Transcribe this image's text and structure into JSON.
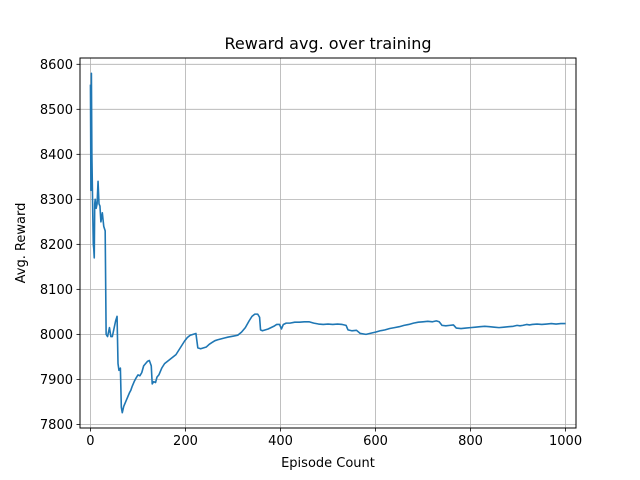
{
  "chart_data": {
    "type": "line",
    "title": "Reward avg. over training",
    "xlabel": "Episode Count",
    "ylabel": "Avg. Reward",
    "xlim": [
      -22,
      1022
    ],
    "ylim": [
      7792,
      8614
    ],
    "xticks": [
      0,
      200,
      400,
      600,
      800,
      1000
    ],
    "yticks": [
      7800,
      7900,
      8000,
      8100,
      8200,
      8300,
      8400,
      8500,
      8600
    ],
    "grid": true,
    "line_color": "#1f77b4",
    "series": [
      {
        "points": [
          [
            0,
            8555
          ],
          [
            1,
            8320
          ],
          [
            2,
            8580
          ],
          [
            3,
            8400
          ],
          [
            4,
            8330
          ],
          [
            5,
            8260
          ],
          [
            6,
            8200
          ],
          [
            7,
            8190
          ],
          [
            8,
            8170
          ],
          [
            9,
            8290
          ],
          [
            10,
            8300
          ],
          [
            12,
            8280
          ],
          [
            14,
            8290
          ],
          [
            16,
            8340
          ],
          [
            18,
            8290
          ],
          [
            20,
            8285
          ],
          [
            22,
            8250
          ],
          [
            25,
            8270
          ],
          [
            28,
            8240
          ],
          [
            31,
            8230
          ],
          [
            33,
            8000
          ],
          [
            36,
            7995
          ],
          [
            40,
            8015
          ],
          [
            43,
            7995
          ],
          [
            46,
            7995
          ],
          [
            49,
            8010
          ],
          [
            53,
            8030
          ],
          [
            56,
            8040
          ],
          [
            58,
            7935
          ],
          [
            60,
            7920
          ],
          [
            63,
            7925
          ],
          [
            65,
            7838
          ],
          [
            67,
            7826
          ],
          [
            70,
            7840
          ],
          [
            74,
            7850
          ],
          [
            78,
            7860
          ],
          [
            82,
            7870
          ],
          [
            85,
            7876
          ],
          [
            88,
            7885
          ],
          [
            92,
            7895
          ],
          [
            96,
            7903
          ],
          [
            100,
            7910
          ],
          [
            104,
            7908
          ],
          [
            108,
            7915
          ],
          [
            112,
            7930
          ],
          [
            116,
            7935
          ],
          [
            120,
            7940
          ],
          [
            124,
            7942
          ],
          [
            128,
            7930
          ],
          [
            130,
            7890
          ],
          [
            133,
            7895
          ],
          [
            137,
            7893
          ],
          [
            140,
            7905
          ],
          [
            144,
            7910
          ],
          [
            150,
            7925
          ],
          [
            156,
            7935
          ],
          [
            162,
            7940
          ],
          [
            168,
            7945
          ],
          [
            174,
            7950
          ],
          [
            180,
            7955
          ],
          [
            186,
            7965
          ],
          [
            192,
            7975
          ],
          [
            198,
            7985
          ],
          [
            204,
            7993
          ],
          [
            210,
            7998
          ],
          [
            216,
            8000
          ],
          [
            222,
            8002
          ],
          [
            226,
            7970
          ],
          [
            232,
            7968
          ],
          [
            238,
            7970
          ],
          [
            244,
            7972
          ],
          [
            250,
            7978
          ],
          [
            256,
            7982
          ],
          [
            262,
            7986
          ],
          [
            268,
            7988
          ],
          [
            275,
            7990
          ],
          [
            282,
            7992
          ],
          [
            290,
            7994
          ],
          [
            300,
            7996
          ],
          [
            310,
            7998
          ],
          [
            318,
            8005
          ],
          [
            326,
            8015
          ],
          [
            334,
            8030
          ],
          [
            340,
            8040
          ],
          [
            346,
            8045
          ],
          [
            352,
            8045
          ],
          [
            356,
            8038
          ],
          [
            358,
            8010
          ],
          [
            362,
            8008
          ],
          [
            368,
            8010
          ],
          [
            374,
            8012
          ],
          [
            380,
            8015
          ],
          [
            386,
            8018
          ],
          [
            392,
            8022
          ],
          [
            398,
            8022
          ],
          [
            402,
            8012
          ],
          [
            406,
            8022
          ],
          [
            412,
            8025
          ],
          [
            420,
            8025
          ],
          [
            430,
            8027
          ],
          [
            440,
            8027
          ],
          [
            450,
            8028
          ],
          [
            460,
            8028
          ],
          [
            470,
            8025
          ],
          [
            480,
            8023
          ],
          [
            490,
            8022
          ],
          [
            500,
            8023
          ],
          [
            510,
            8022
          ],
          [
            520,
            8023
          ],
          [
            530,
            8022
          ],
          [
            538,
            8020
          ],
          [
            542,
            8010
          ],
          [
            550,
            8008
          ],
          [
            560,
            8009
          ],
          [
            568,
            8002
          ],
          [
            580,
            8000
          ],
          [
            592,
            8003
          ],
          [
            600,
            8005
          ],
          [
            610,
            8008
          ],
          [
            620,
            8010
          ],
          [
            630,
            8013
          ],
          [
            640,
            8015
          ],
          [
            650,
            8017
          ],
          [
            660,
            8020
          ],
          [
            670,
            8022
          ],
          [
            680,
            8025
          ],
          [
            690,
            8027
          ],
          [
            700,
            8028
          ],
          [
            710,
            8029
          ],
          [
            720,
            8028
          ],
          [
            728,
            8030
          ],
          [
            734,
            8028
          ],
          [
            740,
            8020
          ],
          [
            748,
            8019
          ],
          [
            756,
            8020
          ],
          [
            764,
            8021
          ],
          [
            770,
            8014
          ],
          [
            780,
            8013
          ],
          [
            790,
            8014
          ],
          [
            800,
            8015
          ],
          [
            810,
            8016
          ],
          [
            820,
            8017
          ],
          [
            830,
            8018
          ],
          [
            840,
            8017
          ],
          [
            850,
            8016
          ],
          [
            860,
            8015
          ],
          [
            870,
            8016
          ],
          [
            880,
            8017
          ],
          [
            890,
            8018
          ],
          [
            898,
            8020
          ],
          [
            904,
            8019
          ],
          [
            910,
            8020
          ],
          [
            918,
            8022
          ],
          [
            924,
            8021
          ],
          [
            930,
            8022
          ],
          [
            940,
            8023
          ],
          [
            950,
            8022
          ],
          [
            960,
            8023
          ],
          [
            970,
            8024
          ],
          [
            980,
            8023
          ],
          [
            990,
            8024
          ],
          [
            1000,
            8024
          ]
        ]
      }
    ]
  }
}
